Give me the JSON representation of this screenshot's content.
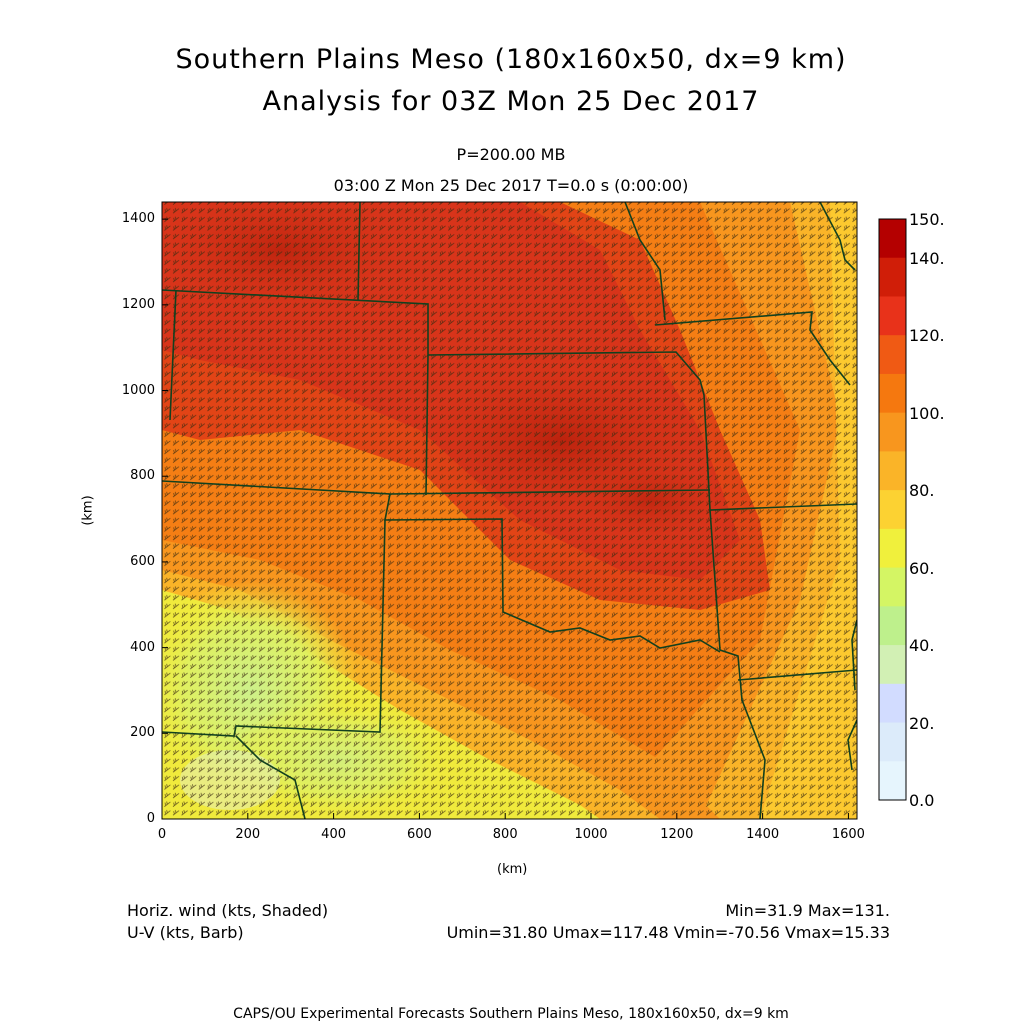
{
  "header": {
    "title_line1": "Southern Plains Meso (180x160x50, dx=9 km)",
    "title_line2": "Analysis for 03Z Mon 25 Dec 2017",
    "level": "P=200.00 MB",
    "time": "03:00 Z Mon 25 Dec 2017    T=0.0 s (0:00:00)"
  },
  "axes": {
    "xlabel": "(km)",
    "ylabel": "(km)",
    "x_ticks": [
      "0",
      "200",
      "400",
      "600",
      "800",
      "1000",
      "1200",
      "1400",
      "1600"
    ],
    "y_ticks": [
      "0",
      "200",
      "400",
      "600",
      "800",
      "1000",
      "1200",
      "1400"
    ],
    "x_range": [
      0,
      1620
    ],
    "y_range": [
      0,
      1440
    ]
  },
  "colorbar": {
    "labels": [
      "150.",
      "140.",
      "120.",
      "100.",
      "80.",
      "60.",
      "40.",
      "20.",
      "0.0"
    ],
    "colors": [
      "#b40000",
      "#d01e08",
      "#e8321a",
      "#f05a14",
      "#f5780f",
      "#f8961e",
      "#fab428",
      "#fcd232",
      "#f0f03c",
      "#d4f564",
      "#bef08c",
      "#d2f0b4",
      "#d2dcff",
      "#dcebfa",
      "#e6f5fd"
    ]
  },
  "footer": {
    "left1": "Horiz. wind (kts, Shaded)",
    "left2": "U-V (kts, Barb)",
    "right1": "Min=31.9 Max=131.",
    "right2": "Umin=31.80 Umax=117.48 Vmin=-70.56 Vmax=15.33",
    "bottom": "CAPS/OU Experimental Forecasts  Southern Plains Meso, 180x160x50, dx=9 km"
  },
  "chart_data": {
    "type": "heatmap",
    "field": "horizontal wind speed (kts)",
    "min": 31.9,
    "max": 131,
    "umin": 31.8,
    "umax": 117.48,
    "vmin": -70.56,
    "vmax": 15.33,
    "pressure_level_mb": 200.0
  }
}
